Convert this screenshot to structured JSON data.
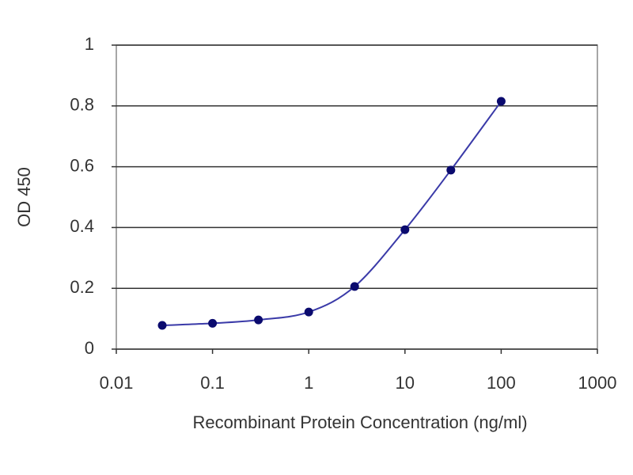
{
  "chart_data": {
    "type": "line",
    "x_label": "Recombinant Protein Concentration (ng/ml)",
    "y_label": "OD 450",
    "x": [
      0.03,
      0.1,
      0.3,
      1,
      3,
      10,
      30,
      100
    ],
    "values": [
      0.078,
      0.085,
      0.096,
      0.122,
      0.206,
      0.393,
      0.589,
      0.815
    ],
    "color": "#3a3aa8",
    "marker_color": "#0a0a6e",
    "x_log": true,
    "xlim": [
      0.01,
      1000
    ],
    "xticks": [
      0.01,
      0.1,
      1,
      10,
      100,
      1000
    ],
    "ylim": [
      0,
      1
    ],
    "yticks": [
      0,
      0.2,
      0.4,
      0.6,
      0.8,
      1
    ],
    "grid": true
  }
}
